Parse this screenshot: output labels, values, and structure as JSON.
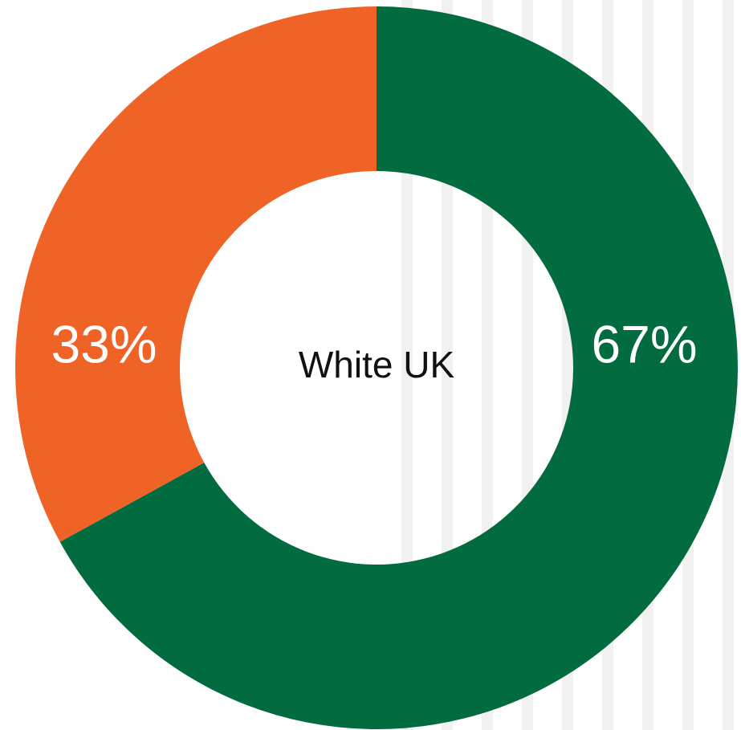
{
  "chart_data": {
    "type": "pie",
    "center_label": "White UK",
    "slices": [
      {
        "label": "67%",
        "value": 67,
        "color": "#026b3f"
      },
      {
        "label": "33%",
        "value": 33,
        "color": "#f06326"
      }
    ]
  }
}
